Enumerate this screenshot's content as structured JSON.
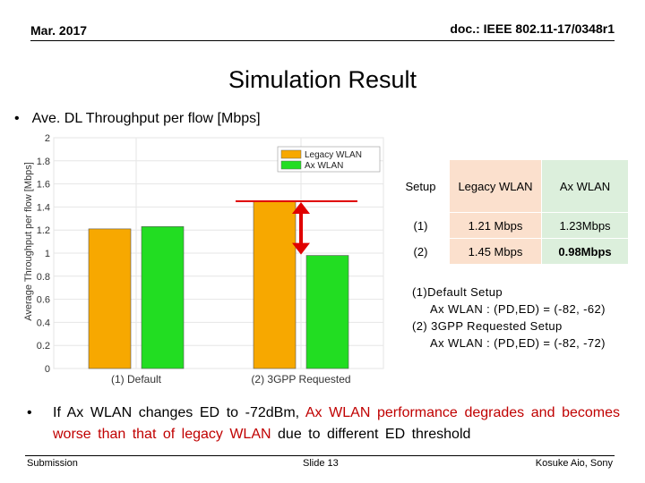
{
  "header": {
    "date": "Mar. 2017",
    "doc": "doc.: IEEE 802.11-17/0348r1"
  },
  "title": "Simulation Result",
  "bullet1": "Ave. DL Throughput per flow [Mbps]",
  "table": {
    "headers": [
      "Setup",
      "Legacy WLAN",
      "Ax WLAN"
    ],
    "rows": [
      [
        "(1)",
        "1.21 Mbps",
        "1.23Mbps"
      ],
      [
        "(2)",
        "1.45 Mbps",
        "0.98Mbps"
      ]
    ]
  },
  "notes": [
    "(1)Default Setup",
    "Ax WLAN : (PD,ED) = (-82, -62)",
    "(2) 3GPP Requested Setup",
    "Ax WLAN : (PD,ED) = (-82, -72)"
  ],
  "bullet2": {
    "p1": "If Ax WLAN changes ED to -72dBm,",
    "p2": "Ax WLAN performance degrades and becomes worse than that of legacy WLAN",
    "p3": "due to different ED threshold"
  },
  "footer": {
    "left": "Submission",
    "center": "Slide 13",
    "right": "Kosuke Aio, Sony"
  },
  "chart_data": {
    "type": "bar",
    "categories": [
      "(1) Default",
      "(2) 3GPP Requested"
    ],
    "series": [
      {
        "name": "Legacy WLAN",
        "values": [
          1.21,
          1.45
        ],
        "color": "#f7a800"
      },
      {
        "name": "Ax WLAN",
        "values": [
          1.23,
          0.98
        ],
        "color": "#22dd22"
      }
    ],
    "ylabel": "Average Throughput per flow [Mbps]",
    "ylim": [
      0,
      2
    ],
    "yticks": [
      "0",
      "0.2",
      "0.4",
      "0.6",
      "0.8",
      "1",
      "1.2",
      "1.4",
      "1.6",
      "1.8",
      "2"
    ],
    "grid": true,
    "legend": "top-right",
    "annotation": {
      "color": "#e00000"
    }
  }
}
